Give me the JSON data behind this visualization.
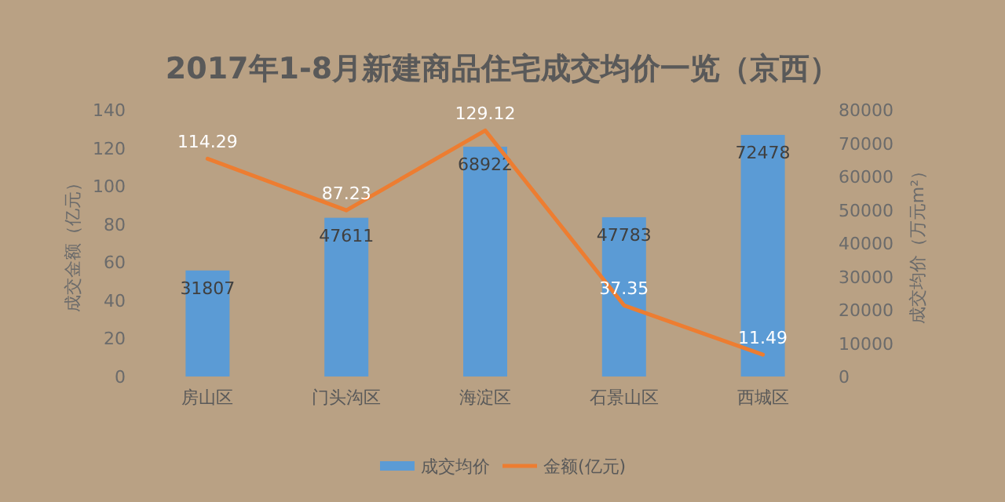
{
  "chart_data": {
    "type": "bar",
    "title": "2017年1-8月新建商品住宅成交均价一览（京西）",
    "categories": [
      "房山区",
      "门头沟区",
      "海淀区",
      "石景山区",
      "西城区"
    ],
    "series": [
      {
        "name": "成交均价",
        "axis": "y2",
        "color": "#5b9bd5",
        "values": [
          31807,
          47611,
          68922,
          47783,
          72478
        ]
      },
      {
        "name": "金额(亿元)",
        "type": "line",
        "axis": "y",
        "color": "#ed7d31",
        "values": [
          114.29,
          87.23,
          129.12,
          37.35,
          11.49
        ]
      }
    ],
    "ylabel": "成交金额（亿元）",
    "y2label": "成交均价（万元m²）",
    "ylim": [
      0,
      140
    ],
    "yticks": [
      0,
      20,
      40,
      60,
      80,
      100,
      120,
      140
    ],
    "y2lim": [
      0,
      80000
    ],
    "y2ticks": [
      0,
      10000,
      20000,
      30000,
      40000,
      50000,
      60000,
      70000,
      80000
    ],
    "data_labels": true,
    "legend": "bottom",
    "marker": "none"
  }
}
